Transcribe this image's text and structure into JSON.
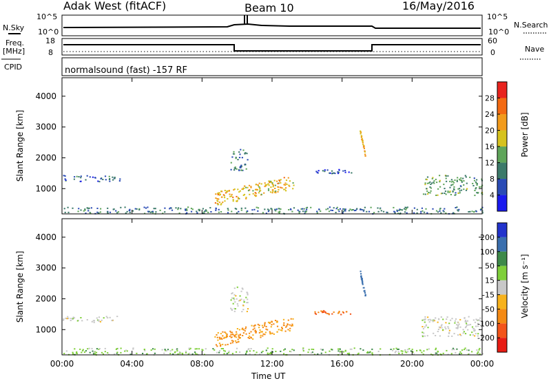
{
  "header": {
    "radar": "Adak West (fitACF)",
    "beam": "Beam 10",
    "date": "16/May/2016"
  },
  "top_panels": {
    "nsky_label": "N.Sky",
    "nsky_ticks": [
      "10^5",
      "10^0"
    ],
    "nsearch_label": "N.Search",
    "nsearch_ticks": [
      "10^5",
      "10^0"
    ],
    "freq_label": "Freq.",
    "freq_unit": "[MHz]",
    "freq_ticks": [
      "18",
      "8"
    ],
    "nave_label": "Nave",
    "nave_ticks": [
      "60",
      "0"
    ],
    "cpid_label": "CPID",
    "cpid_text": "normalsound (fast) -157 RF"
  },
  "chart_data": [
    {
      "type": "heatmap",
      "panel": "power",
      "ylabel": "Slant Range [km]",
      "ylim": [
        180,
        4600
      ],
      "yticks": [
        1000,
        2000,
        3000,
        4000
      ],
      "x_ticks": [
        "00:00",
        "04:00",
        "08:00",
        "12:00",
        "16:00",
        "20:00",
        "00:00"
      ],
      "colorbar": {
        "label": "Power [dB]",
        "ticks": [
          4,
          8,
          12,
          16,
          20,
          24,
          28
        ],
        "colors": [
          "#1a1aee",
          "#2a4bb5",
          "#3c7a6a",
          "#5fa55a",
          "#d6c21e",
          "#f29b1c",
          "#f36a12",
          "#e8231e"
        ]
      },
      "features": [
        {
          "t_start": 0.0,
          "t_end": 3.3,
          "range_start": 1250,
          "range_end": 1450,
          "value": 8
        },
        {
          "t_start": 8.7,
          "t_end": 13.2,
          "range_start": 700,
          "range_end": 1350,
          "value": 20
        },
        {
          "t_start": 9.6,
          "t_end": 10.6,
          "range_start": 1600,
          "range_end": 2300,
          "value": 10
        },
        {
          "t_start": 14.3,
          "t_end": 16.5,
          "range_start": 1500,
          "range_end": 1650,
          "value": 6
        },
        {
          "t_start": 17.0,
          "t_end": 17.3,
          "range_start": 2100,
          "range_end": 2900,
          "value": 22
        },
        {
          "t_start": 20.5,
          "t_end": 24.0,
          "range_start": 800,
          "range_end": 1450,
          "value": 12
        },
        {
          "t_start": 0.0,
          "t_end": 24.0,
          "range_start": 200,
          "range_end": 420,
          "value": 10
        }
      ]
    },
    {
      "type": "heatmap",
      "panel": "velocity",
      "ylabel": "Slant Range [km]",
      "ylim": [
        180,
        4600
      ],
      "yticks": [
        1000,
        2000,
        3000,
        4000
      ],
      "x_ticks": [
        "00:00",
        "04:00",
        "08:00",
        "12:00",
        "16:00",
        "20:00",
        "00:00"
      ],
      "xlabel": "Time UT",
      "colorbar": {
        "label": "Velocity [m s⁻¹]",
        "ticks": [
          200,
          100,
          50,
          15,
          -15,
          -50,
          -100,
          -200
        ],
        "colors": [
          "#2233cc",
          "#3a6fae",
          "#3e8a4a",
          "#7fcf3a",
          "#c8c8c8",
          "#f7b21c",
          "#f48a14",
          "#f3541a",
          "#e81c14"
        ]
      },
      "features": [
        {
          "t_start": 0.0,
          "t_end": 3.3,
          "range_start": 1250,
          "range_end": 1450,
          "value": 0
        },
        {
          "t_start": 8.7,
          "t_end": 13.2,
          "range_start": 700,
          "range_end": 1350,
          "value": -60
        },
        {
          "t_start": 9.6,
          "t_end": 10.6,
          "range_start": 1600,
          "range_end": 2400,
          "value": 0
        },
        {
          "t_start": 14.3,
          "t_end": 16.5,
          "range_start": 1500,
          "range_end": 1650,
          "value": -100
        },
        {
          "t_start": 17.0,
          "t_end": 17.3,
          "range_start": 2100,
          "range_end": 2900,
          "value": 120
        },
        {
          "t_start": 20.5,
          "t_end": 24.0,
          "range_start": 800,
          "range_end": 1450,
          "value": 0
        },
        {
          "t_start": 0.0,
          "t_end": 24.0,
          "range_start": 200,
          "range_end": 420,
          "value": 30
        }
      ]
    }
  ]
}
